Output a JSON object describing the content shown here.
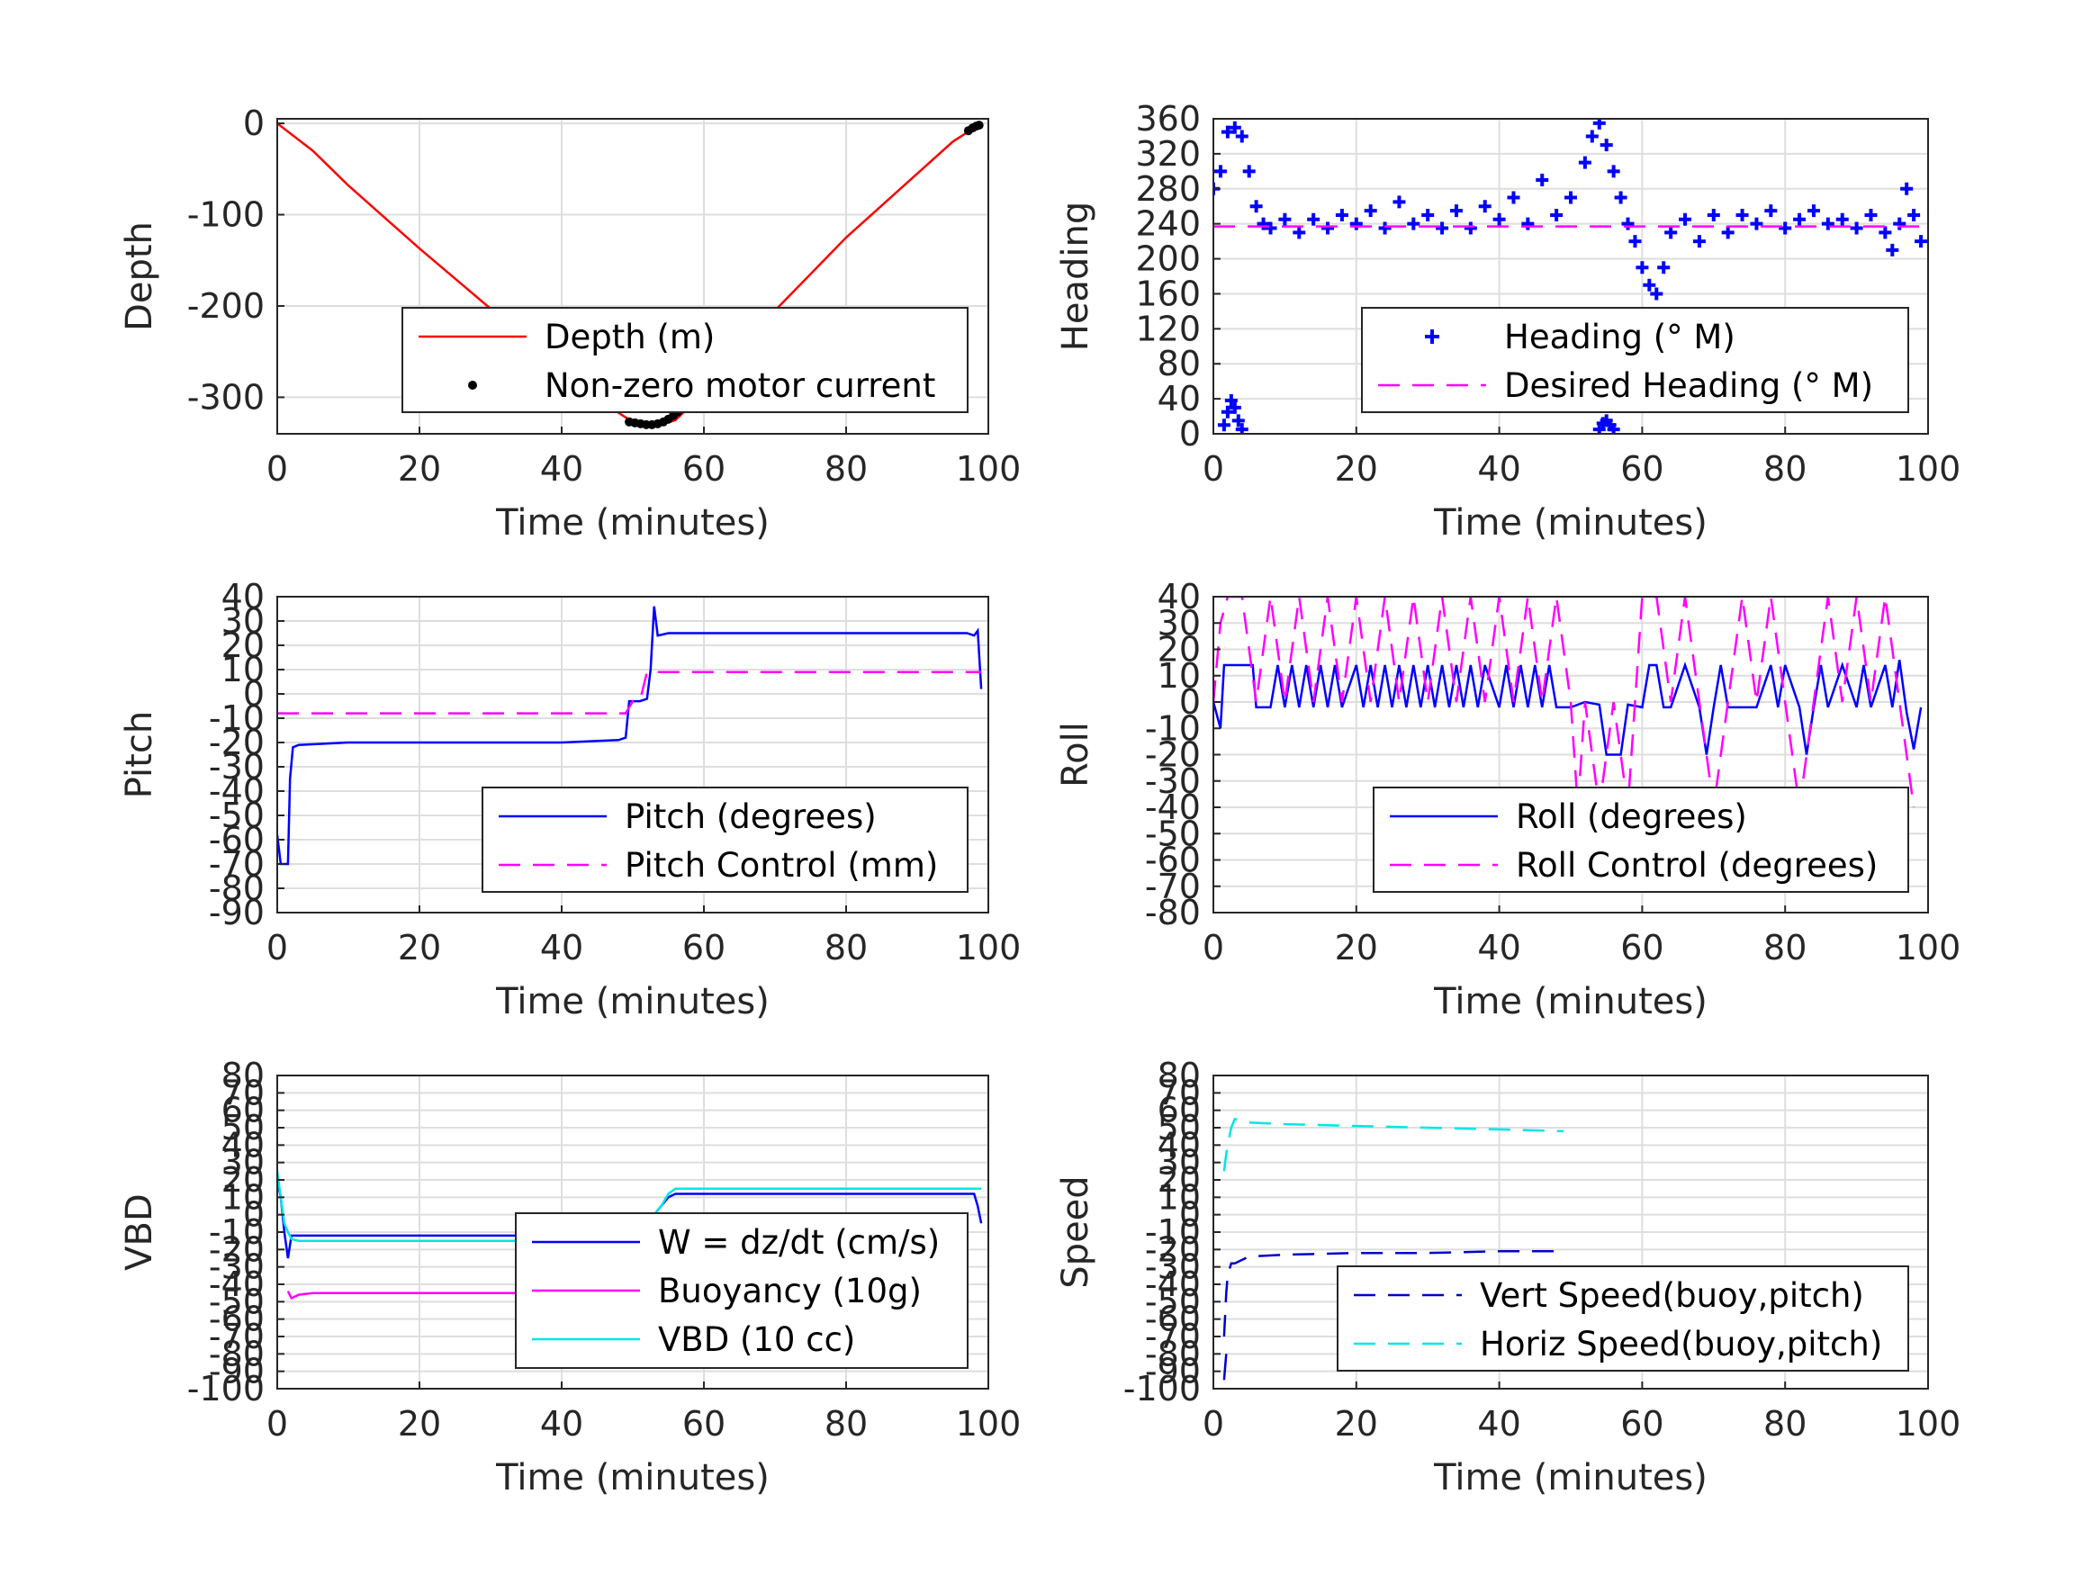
{
  "chart_data": [
    {
      "id": "depth",
      "type": "line",
      "xlabel": "Time (minutes)",
      "ylabel": "Depth",
      "xlim": [
        0,
        100
      ],
      "ylim": [
        -340,
        5
      ],
      "xticks": [
        0,
        20,
        40,
        60,
        80,
        100
      ],
      "yticks": [
        0,
        -100,
        -200,
        -300
      ],
      "legend": "bottom-right",
      "series": [
        {
          "name": "Depth (m)",
          "style": "line",
          "color": "#ff0000",
          "x": [
            0,
            5,
            10,
            20,
            30,
            40,
            45,
            48,
            50,
            52,
            54,
            56,
            58,
            60,
            65,
            70,
            75,
            80,
            85,
            90,
            95,
            97,
            98.5
          ],
          "y": [
            0,
            -30,
            -68,
            -137,
            -203,
            -270,
            -300,
            -317,
            -327,
            -331,
            -330,
            -325,
            -310,
            -293,
            -250,
            -205,
            -165,
            -125,
            -90,
            -55,
            -20,
            -10,
            -2
          ]
        },
        {
          "name": "Non-zero motor current",
          "style": "dots",
          "color": "#000000",
          "x": [
            49.5,
            50.3,
            51.1,
            51.9,
            52.7,
            53.5,
            54.3,
            55.0,
            55.7,
            56.3,
            97.2,
            97.8,
            98.3,
            98.7
          ],
          "y": [
            -327,
            -328,
            -329,
            -330,
            -330,
            -329,
            -327,
            -324,
            -320,
            -316,
            -8,
            -5,
            -3,
            -2
          ]
        }
      ]
    },
    {
      "id": "heading",
      "type": "scatter",
      "xlabel": "Time (minutes)",
      "ylabel": "Heading",
      "xlim": [
        0,
        100
      ],
      "ylim": [
        0,
        360
      ],
      "xticks": [
        0,
        20,
        40,
        60,
        80,
        100
      ],
      "yticks": [
        0,
        40,
        80,
        120,
        160,
        200,
        240,
        280,
        320,
        360
      ],
      "legend": "bottom-right",
      "series": [
        {
          "name": "Heading (° M)",
          "style": "plus",
          "color": "#0000ff",
          "x": [
            0,
            1,
            2,
            3,
            4,
            5,
            6,
            7,
            8,
            10,
            12,
            14,
            16,
            18,
            20,
            22,
            24,
            26,
            28,
            30,
            32,
            34,
            36,
            38,
            40,
            42,
            44,
            46,
            48,
            50,
            52,
            53,
            54,
            55,
            56,
            57,
            58,
            59,
            60,
            61,
            62,
            63,
            64,
            66,
            68,
            70,
            72,
            74,
            76,
            78,
            80,
            82,
            84,
            86,
            88,
            90,
            92,
            94,
            95,
            96,
            97,
            98,
            99
          ],
          "y": [
            280,
            300,
            345,
            350,
            340,
            300,
            260,
            240,
            235,
            245,
            230,
            245,
            235,
            250,
            240,
            255,
            235,
            265,
            240,
            250,
            235,
            255,
            235,
            260,
            245,
            270,
            240,
            290,
            250,
            270,
            310,
            340,
            355,
            330,
            300,
            270,
            240,
            220,
            190,
            170,
            160,
            190,
            230,
            245,
            220,
            250,
            230,
            250,
            240,
            255,
            235,
            245,
            255,
            240,
            245,
            235,
            250,
            230,
            210,
            240,
            280,
            250,
            220
          ]
        },
        {
          "name": "",
          "style": "plus",
          "color": "#0000ff",
          "x": [
            1.5,
            2.0,
            2.5,
            3.0,
            3.5,
            4.0,
            54.0,
            54.5,
            55.0,
            55.5,
            56.0
          ],
          "y": [
            10,
            25,
            38,
            30,
            15,
            5,
            5,
            12,
            15,
            10,
            5
          ]
        },
        {
          "name": "Desired Heading (° M)",
          "style": "dashed",
          "color": "#ff00ff",
          "x": [
            0,
            100
          ],
          "y": [
            237,
            237
          ]
        }
      ]
    },
    {
      "id": "pitch",
      "type": "line",
      "xlabel": "Time (minutes)",
      "ylabel": "Pitch",
      "xlim": [
        0,
        100
      ],
      "ylim": [
        -90,
        40
      ],
      "xticks": [
        0,
        20,
        40,
        60,
        80,
        100
      ],
      "yticks": [
        40,
        30,
        20,
        10,
        0,
        -10,
        -20,
        -30,
        -40,
        -50,
        -60,
        -70,
        -80,
        -90
      ],
      "legend": "bottom-right",
      "series": [
        {
          "name": "Pitch (degrees)",
          "style": "line",
          "color": "#0000ff",
          "x": [
            0,
            0.5,
            1,
            1.5,
            1.8,
            2.2,
            3,
            10,
            20,
            30,
            40,
            48,
            49,
            49.5,
            50,
            51,
            52,
            52.5,
            53,
            53.5,
            55,
            60,
            70,
            80,
            90,
            95,
            97,
            98,
            98.5,
            99
          ],
          "y": [
            -58,
            -70,
            -70,
            -70,
            -35,
            -22,
            -21,
            -20,
            -20,
            -20,
            -20,
            -19,
            -18,
            -3,
            -3,
            -3,
            -2,
            10,
            36,
            24,
            25,
            25,
            25,
            25,
            25,
            25,
            25,
            24,
            26,
            2
          ]
        },
        {
          "name": "Pitch Control (mm)",
          "style": "dashed",
          "color": "#ff00ff",
          "x": [
            0,
            48,
            49,
            50,
            51,
            52,
            52.5,
            53,
            99
          ],
          "y": [
            -8,
            -8,
            -8,
            -3,
            -3,
            9,
            9,
            9,
            9
          ]
        }
      ]
    },
    {
      "id": "roll",
      "type": "line",
      "xlabel": "Time (minutes)",
      "ylabel": "Roll",
      "xlim": [
        0,
        100
      ],
      "ylim": [
        -80,
        40
      ],
      "xticks": [
        0,
        20,
        40,
        60,
        80,
        100
      ],
      "yticks": [
        40,
        30,
        20,
        10,
        0,
        -10,
        -20,
        -30,
        -40,
        -50,
        -60,
        -70,
        -80
      ],
      "legend": "bottom-right",
      "series": [
        {
          "name": "Roll (degrees)",
          "style": "line",
          "color": "#0000ff",
          "x": [
            0,
            1,
            1.5,
            2,
            3,
            5,
            5.5,
            6,
            8,
            9,
            10,
            11,
            12,
            13,
            14,
            15,
            16,
            17,
            18,
            20,
            21,
            22,
            23,
            24,
            25,
            26,
            27,
            28,
            29,
            30,
            31,
            32,
            33,
            34,
            35,
            36,
            37,
            38,
            40,
            41,
            42,
            43,
            44,
            45,
            46,
            47,
            48,
            50,
            52,
            54,
            55,
            56,
            57,
            58,
            60,
            61,
            62,
            63,
            64,
            66,
            68,
            69,
            70,
            71,
            72,
            74,
            76,
            78,
            79,
            80,
            82,
            83,
            84,
            85,
            86,
            88,
            90,
            91,
            92,
            94,
            95,
            96,
            97,
            98,
            99
          ],
          "y": [
            0,
            -10,
            14,
            14,
            14,
            14,
            14,
            -2,
            -2,
            14,
            -2,
            14,
            -2,
            14,
            -2,
            14,
            -2,
            14,
            -2,
            14,
            -2,
            14,
            -2,
            14,
            -2,
            14,
            -2,
            14,
            -2,
            14,
            -2,
            14,
            -2,
            14,
            -2,
            14,
            -2,
            14,
            -2,
            14,
            -2,
            14,
            -2,
            14,
            -2,
            14,
            -2,
            -2,
            0,
            -1,
            -20,
            -20,
            -20,
            -1,
            -2,
            14,
            14,
            -2,
            -2,
            14,
            -2,
            -20,
            -2,
            14,
            -2,
            -2,
            -2,
            14,
            -2,
            14,
            -2,
            -20,
            -2,
            14,
            -2,
            14,
            -2,
            14,
            -2,
            14,
            -2,
            16,
            -4,
            -18,
            -2
          ]
        },
        {
          "name": "Roll Control (degrees)",
          "style": "dashed",
          "color": "#ff00ff",
          "x": [
            0,
            1,
            2,
            4,
            6,
            8,
            10,
            12,
            14,
            16,
            18,
            20,
            22,
            24,
            26,
            28,
            30,
            32,
            34,
            36,
            38,
            40,
            42,
            44,
            46,
            48,
            50,
            51,
            52,
            54,
            56,
            58,
            60,
            62,
            64,
            66,
            68,
            70,
            72,
            74,
            76,
            78,
            80,
            82,
            84,
            86,
            88,
            90,
            92,
            94,
            96,
            98
          ],
          "y": [
            0,
            30,
            40,
            40,
            0,
            40,
            0,
            40,
            0,
            40,
            0,
            40,
            0,
            40,
            0,
            40,
            0,
            40,
            0,
            40,
            0,
            40,
            0,
            40,
            0,
            40,
            0,
            -40,
            0,
            -40,
            0,
            -40,
            40,
            40,
            0,
            40,
            0,
            -40,
            0,
            40,
            0,
            40,
            0,
            -40,
            0,
            40,
            0,
            40,
            0,
            40,
            0,
            -40
          ]
        }
      ]
    },
    {
      "id": "vbd",
      "type": "line",
      "xlabel": "Time (minutes)",
      "ylabel": "VBD",
      "xlim": [
        0,
        100
      ],
      "ylim": [
        -100,
        80
      ],
      "xticks": [
        0,
        20,
        40,
        60,
        80,
        100
      ],
      "yticks": [
        -100
      ],
      "yticks_overlap": [
        80,
        70,
        60,
        50,
        40,
        30,
        20,
        10,
        0,
        -10,
        -20,
        -30,
        -40,
        -50,
        -60,
        -70,
        -80,
        -90
      ],
      "legend": "bottom-right",
      "series": [
        {
          "name": "W = dz/dt (cm/s)",
          "style": "line",
          "color": "#0000ff",
          "x": [
            0,
            0.5,
            1,
            1.5,
            2,
            3,
            5,
            10,
            20,
            30,
            40,
            48,
            49,
            50,
            52,
            54,
            55,
            56,
            60,
            70,
            80,
            90,
            95,
            97,
            98,
            98.5,
            99
          ],
          "y": [
            20,
            10,
            -10,
            -25,
            -12,
            -12,
            -12,
            -12,
            -12,
            -12,
            -12,
            -12,
            -12,
            -10,
            -5,
            5,
            10,
            12,
            12,
            12,
            12,
            12,
            12,
            12,
            12,
            5,
            -5
          ]
        },
        {
          "name": "Buoyancy (10g)",
          "style": "line",
          "color": "#ff00ff",
          "x": [
            1.5,
            2,
            3,
            5,
            10,
            20,
            30,
            40,
            49
          ],
          "y": [
            -44,
            -48,
            -46,
            -45,
            -45,
            -45,
            -45,
            -45,
            -45
          ]
        },
        {
          "name": "VBD (10 cc)",
          "style": "line",
          "color": "#00e5e5",
          "x": [
            0,
            0.5,
            1,
            1.5,
            2,
            3,
            10,
            20,
            30,
            40,
            48,
            49,
            50,
            52,
            54,
            55,
            56,
            60,
            70,
            80,
            90,
            97,
            99
          ],
          "y": [
            25,
            10,
            -5,
            -10,
            -14,
            -15,
            -15,
            -15,
            -15,
            -15,
            -15,
            -15,
            -15,
            -5,
            5,
            12,
            15,
            15,
            15,
            15,
            15,
            15,
            15
          ]
        }
      ]
    },
    {
      "id": "speed",
      "type": "line",
      "xlabel": "Time (minutes)",
      "ylabel": "Speed",
      "xlim": [
        0,
        100
      ],
      "ylim": [
        -100,
        80
      ],
      "xticks": [
        0,
        20,
        40,
        60,
        80,
        100
      ],
      "yticks": [
        -100
      ],
      "yticks_overlap": [
        80,
        70,
        60,
        50,
        40,
        30,
        20,
        10,
        0,
        -10,
        -20,
        -30,
        -40,
        -50,
        -60,
        -70,
        -80,
        -90
      ],
      "legend": "bottom-right",
      "series": [
        {
          "name": "Vert Speed(buoy,pitch)",
          "style": "dashed",
          "color": "#0000cd",
          "x": [
            1.5,
            1.8,
            2,
            2.5,
            3,
            5,
            10,
            20,
            30,
            40,
            49
          ],
          "y": [
            -70,
            -45,
            -35,
            -28,
            -28,
            -24,
            -23,
            -22,
            -22,
            -21,
            -21
          ]
        },
        {
          "name": "",
          "style": "line",
          "color": "#0000cd",
          "x": [
            1.5,
            1.8
          ],
          "y": [
            -95,
            -80
          ]
        },
        {
          "name": "Horiz Speed(buoy,pitch)",
          "style": "dashed",
          "color": "#00e5e5",
          "x": [
            1.5,
            1.8,
            2,
            2.5,
            3,
            5,
            10,
            20,
            30,
            40,
            49
          ],
          "y": [
            25,
            35,
            40,
            50,
            55,
            53,
            52,
            51,
            50,
            49,
            48
          ]
        }
      ]
    }
  ]
}
